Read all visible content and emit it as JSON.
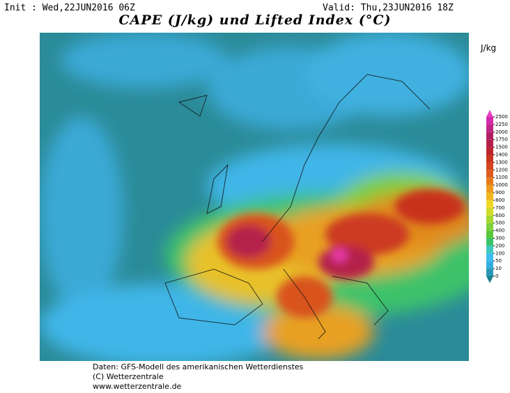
{
  "header": {
    "init": "Init : Wed,22JUN2016 06Z",
    "valid": "Valid: Thu,23JUN2016 18Z",
    "title": "CAPE (J/kg) und Lifted Index (°C)"
  },
  "legend": {
    "unit": "J/kg",
    "levels": [
      0,
      10,
      50,
      100,
      200,
      300,
      400,
      500,
      600,
      700,
      800,
      900,
      1000,
      1100,
      1200,
      1300,
      1400,
      1500,
      1750,
      2000,
      2250,
      2500
    ],
    "colors": [
      "#1c7f8c",
      "#2a98b4",
      "#33aee0",
      "#3cbdf0",
      "#3cc9c0",
      "#3cc26a",
      "#58c83a",
      "#7ecf3a",
      "#a6d82e",
      "#d2dc28",
      "#f0d824",
      "#f0b820",
      "#eb9a1c",
      "#e47a1a",
      "#dc5c1c",
      "#d4441e",
      "#c8321e",
      "#bc2430",
      "#b41e48",
      "#b01e64",
      "#c02488",
      "#d42aa8",
      "#e840c4"
    ]
  },
  "footer": [
    "Daten: GFS-Modell des amerikanischen Wetterdienstes",
    "(C) Wetterzentrale",
    "www.wetterzentrale.de"
  ]
}
